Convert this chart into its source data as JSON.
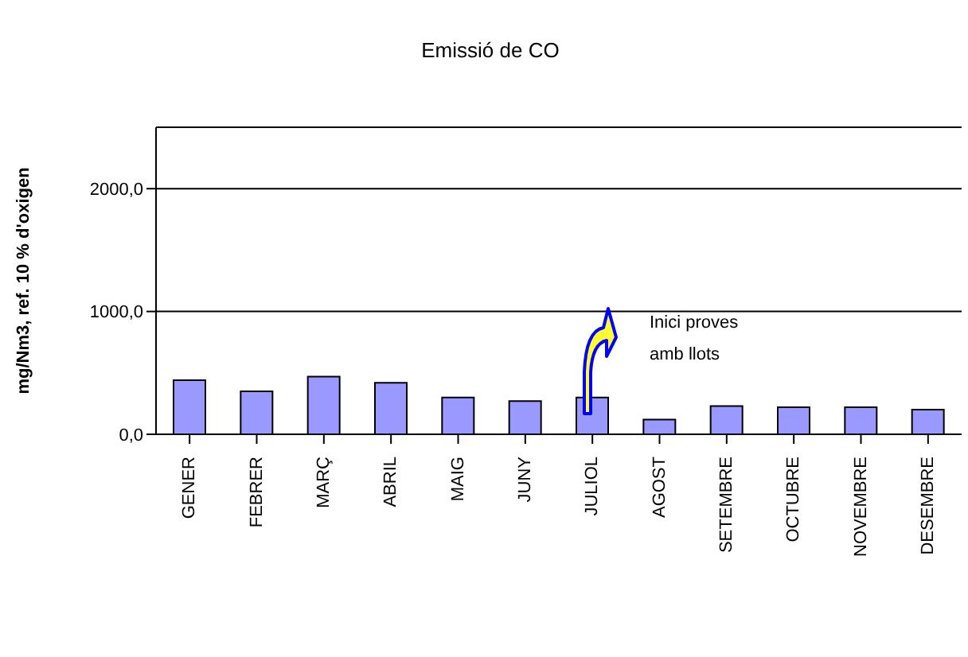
{
  "chart_data": {
    "type": "bar",
    "title": "Emissió de CO",
    "ylabel": "mg/Nm3, ref. 10 % d'oxigen",
    "categories": [
      "GENER",
      "FEBRER",
      "MARÇ",
      "ABRIL",
      "MAIG",
      "JUNY",
      "JULIOL",
      "AGOST",
      "SETEMBRE",
      "OCTUBRE",
      "NOVEMBRE",
      "DESEMBRE"
    ],
    "values": [
      440,
      350,
      470,
      420,
      300,
      270,
      300,
      120,
      230,
      220,
      220,
      200
    ],
    "color": "#9999ff",
    "ylim": [
      0,
      2500
    ],
    "yticks": [
      {
        "value": 0,
        "label": "0,0"
      },
      {
        "value": 1000,
        "label": "1000,0"
      },
      {
        "value": 2000,
        "label": "2000,0"
      }
    ],
    "grid": "y",
    "annotations": [
      "Inici proves amb llots"
    ]
  }
}
